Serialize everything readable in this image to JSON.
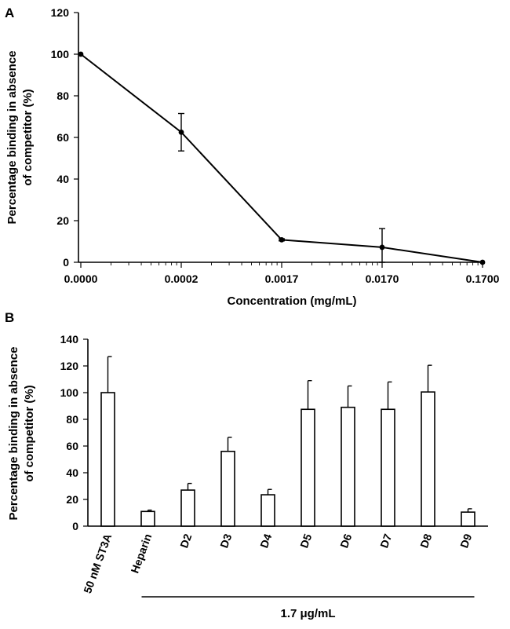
{
  "chart_data": [
    {
      "panel": "A",
      "type": "line",
      "title": "",
      "xlabel": "Concentration (mg/mL)",
      "ylabel": [
        "Percentage binding in absence",
        "of competitor (%)"
      ],
      "x": [
        "0.0000",
        "0.0002",
        "0.0017",
        "0.0170",
        "0.1700"
      ],
      "values": [
        100,
        62.5,
        10.8,
        7.2,
        0
      ],
      "error": [
        0,
        9,
        0.5,
        9,
        0
      ],
      "ylim": [
        0,
        120
      ],
      "yticks": [
        0,
        20,
        40,
        60,
        80,
        100,
        120
      ],
      "x_scale": "log",
      "grid": false,
      "legend": "none"
    },
    {
      "panel": "B",
      "type": "bar",
      "title": "",
      "xlabel": "",
      "ylabel": [
        "Percentage binding in absence",
        "of competitor (%)"
      ],
      "categories": [
        "50 nM ST3A",
        "Heparin",
        "D2",
        "D3",
        "D4",
        "D5",
        "D6",
        "D7",
        "D8",
        "D9"
      ],
      "values": [
        100,
        11,
        27,
        56,
        23.5,
        87.5,
        89,
        87.5,
        100.5,
        10.5
      ],
      "error": [
        27,
        1,
        5,
        10.5,
        4,
        21.5,
        16,
        20.5,
        20,
        2.5
      ],
      "ylim": [
        0,
        140
      ],
      "yticks": [
        0,
        20,
        40,
        60,
        80,
        100,
        120,
        140
      ],
      "group_label": "1.7 μg/mL",
      "group_categories": [
        "Heparin",
        "D9"
      ],
      "grid": false,
      "legend": "none"
    }
  ]
}
